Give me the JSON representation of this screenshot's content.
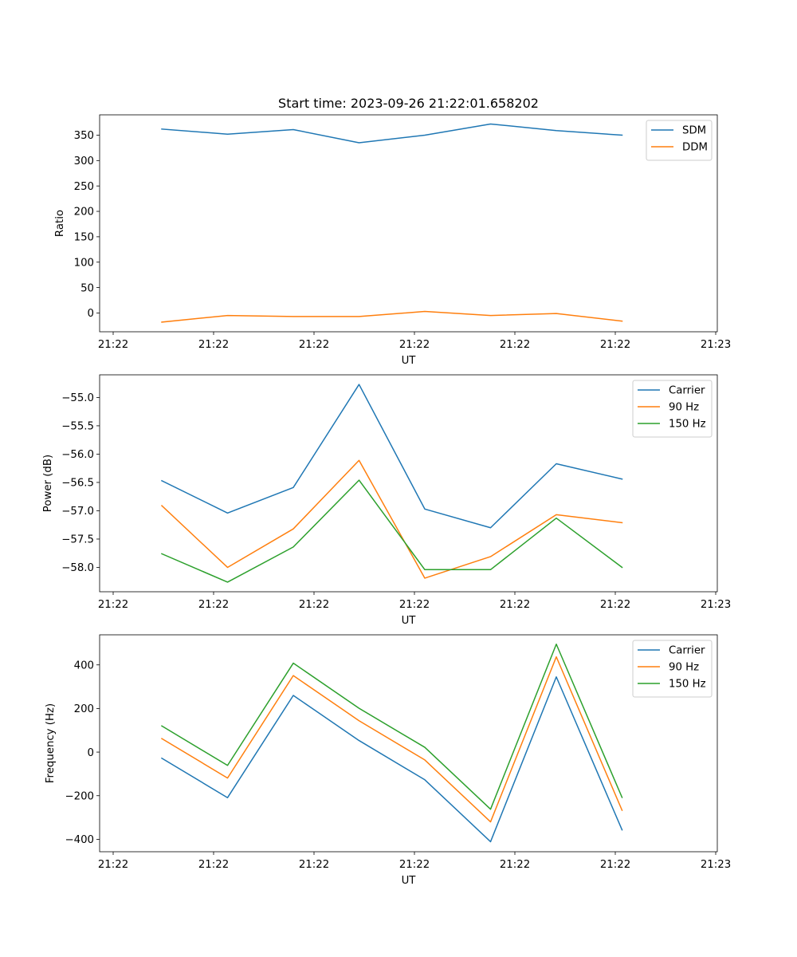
{
  "chart_data": [
    {
      "type": "line",
      "title": "Start time: 2023-09-26 21:22:01.658202",
      "xlabel": "UT",
      "ylabel": "Ratio",
      "xtick_labels": [
        "21:22",
        "21:22",
        "21:22",
        "21:22",
        "21:22",
        "21:22",
        "21:23"
      ],
      "ylim": [
        -37,
        390
      ],
      "yticks": [
        0,
        50,
        100,
        150,
        200,
        250,
        300,
        350
      ],
      "legend": "top-right",
      "grid": false,
      "series": [
        {
          "name": "SDM",
          "color": "#1f77b4",
          "values": [
            362,
            352,
            361,
            335,
            350,
            372,
            359,
            350
          ]
        },
        {
          "name": "DDM",
          "color": "#ff7f0e",
          "values": [
            -18,
            -5,
            -7,
            -7,
            3,
            -5,
            -1,
            -16
          ]
        }
      ]
    },
    {
      "type": "line",
      "title": "",
      "xlabel": "UT",
      "ylabel": "Power (dB)",
      "xtick_labels": [
        "21:22",
        "21:22",
        "21:22",
        "21:22",
        "21:22",
        "21:22",
        "21:23"
      ],
      "ylim": [
        -58.43,
        -54.6
      ],
      "yticks": [
        -58.0,
        -57.5,
        -57.0,
        -56.5,
        -56.0,
        -55.5,
        -55.0
      ],
      "legend": "top-right",
      "grid": false,
      "series": [
        {
          "name": "Carrier",
          "color": "#1f77b4",
          "values": [
            -56.47,
            -57.04,
            -56.59,
            -54.77,
            -56.97,
            -57.3,
            -56.17,
            -56.44
          ]
        },
        {
          "name": "90 Hz",
          "color": "#ff7f0e",
          "values": [
            -56.91,
            -58.0,
            -57.32,
            -56.11,
            -58.19,
            -57.81,
            -57.07,
            -57.21
          ]
        },
        {
          "name": "150 Hz",
          "color": "#2ca02c",
          "values": [
            -57.76,
            -58.26,
            -57.64,
            -56.46,
            -58.04,
            -58.04,
            -57.13,
            -58.0
          ]
        }
      ]
    },
    {
      "type": "line",
      "title": "",
      "xlabel": "UT",
      "ylabel": "Frequency (Hz)",
      "xtick_labels": [
        "21:22",
        "21:22",
        "21:22",
        "21:22",
        "21:22",
        "21:22",
        "21:23"
      ],
      "ylim": [
        -457,
        538
      ],
      "yticks": [
        -400,
        -200,
        0,
        200,
        400
      ],
      "legend": "top-right",
      "grid": false,
      "series": [
        {
          "name": "Carrier",
          "color": "#1f77b4",
          "values": [
            -28,
            -209,
            260,
            53,
            -127,
            -411,
            345,
            -357
          ]
        },
        {
          "name": "90 Hz",
          "color": "#ff7f0e",
          "values": [
            62,
            -119,
            351,
            144,
            -36,
            -320,
            437,
            -267
          ]
        },
        {
          "name": "150 Hz",
          "color": "#2ca02c",
          "values": [
            120,
            -61,
            408,
            201,
            22,
            -262,
            495,
            -208
          ]
        }
      ]
    }
  ]
}
